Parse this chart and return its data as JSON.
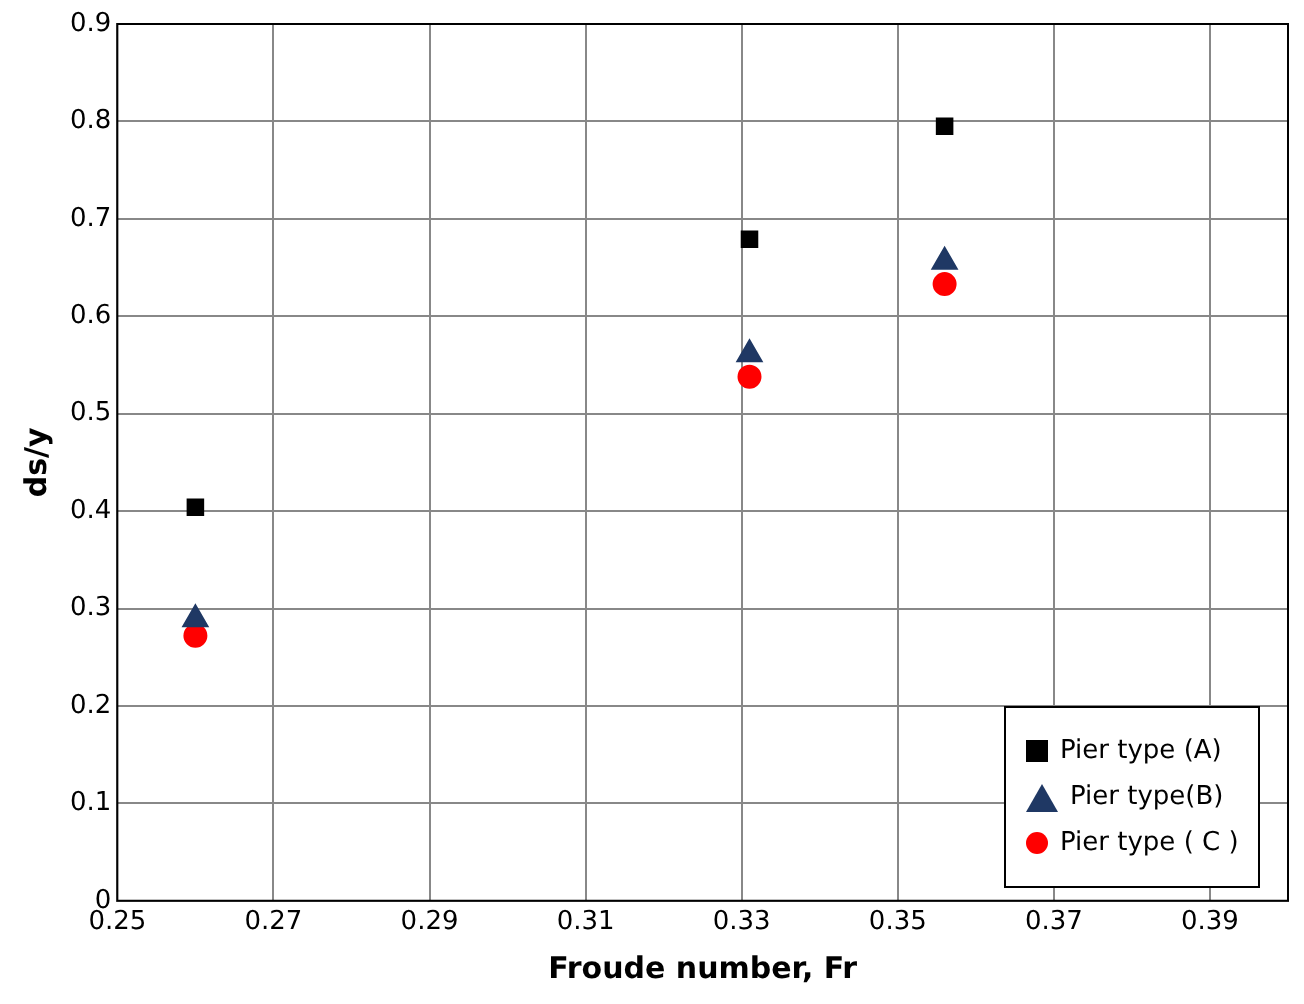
{
  "chart_data": {
    "type": "scatter",
    "xlabel": "Froude number, Fr",
    "ylabel": "ds/y",
    "xlim": [
      0.25,
      0.4
    ],
    "xticks": [
      0.25,
      0.27,
      0.29,
      0.31,
      0.33,
      0.35,
      0.37,
      0.39
    ],
    "ylim": [
      0,
      0.9
    ],
    "yticks": [
      0,
      0.1,
      0.2,
      0.3,
      0.4,
      0.5,
      0.6,
      0.7,
      0.8,
      0.9
    ],
    "grid": true,
    "legend": "bottom right",
    "series": [
      {
        "name": "Pier type (A)",
        "color": "#000000",
        "marker": "square",
        "x": [
          0.26,
          0.331,
          0.356
        ],
        "values": [
          0.404,
          0.679,
          0.795
        ]
      },
      {
        "name": "Pier type(B)",
        "color": "#1f3864",
        "marker": "triangle",
        "x": [
          0.26,
          0.331,
          0.356
        ],
        "values": [
          0.289,
          0.561,
          0.656
        ]
      },
      {
        "name": "Pier type ( C )",
        "color": "#ff0000",
        "marker": "circle",
        "x": [
          0.26,
          0.331,
          0.356
        ],
        "values": [
          0.272,
          0.538,
          0.633
        ]
      }
    ]
  }
}
